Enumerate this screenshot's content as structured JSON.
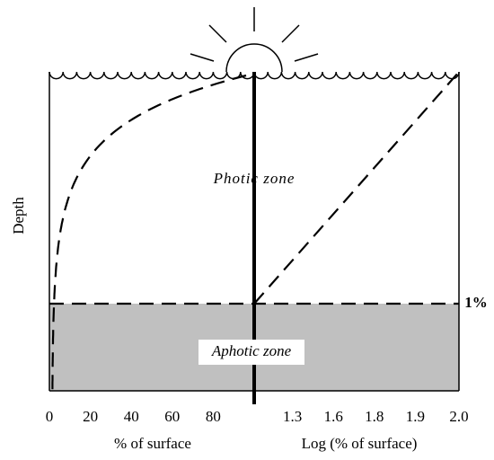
{
  "labels": {
    "depth": "Depth",
    "photic": "Photic zone",
    "aphotic": "Aphotic zone",
    "one_percent": "1%"
  },
  "left_axis": {
    "title": "% of surface",
    "ticks": [
      0,
      20,
      40,
      60,
      80
    ]
  },
  "right_axis": {
    "title": "Log (% of surface)",
    "ticks": [
      1.3,
      1.6,
      1.8,
      1.9,
      {
        "value": 2,
        "label": "2.0"
      }
    ]
  }
}
